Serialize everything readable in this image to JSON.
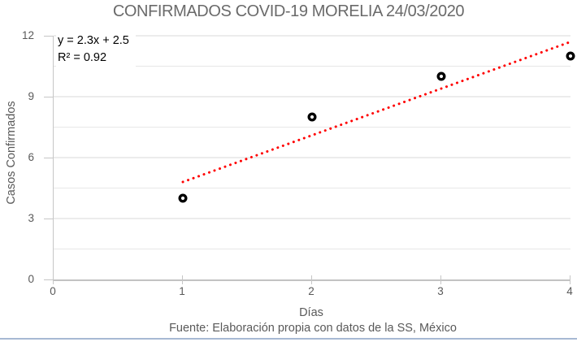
{
  "title": "CONFIRMADOS COVID-19 MORELIA 24/03/2020",
  "footer": "Fuente: Elaboración propia con datos de la SS, México",
  "annotation": {
    "equation": "y = 2.3x + 2.5",
    "r_squared": "R² = 0.92"
  },
  "colors": {
    "title_text": "#6a6a6a",
    "axis_text": "#595959",
    "grid_minor": "#e7e7e7",
    "grid_major": "#d9d9d9",
    "axis_line": "#c6c6c6",
    "marker_stroke": "#000000",
    "marker_fill": "#ffffff",
    "trendline": "#ff0000",
    "bottom_border": "#a7b9d3"
  },
  "chart_data": {
    "type": "scatter",
    "title": "CONFIRMADOS COVID-19 MORELIA 24/03/2020",
    "xlabel": "Días",
    "ylabel": "Casos Confirmados",
    "source_caption": "Fuente: Elaboración propia con datos de la SS, México",
    "xlim": [
      0,
      4
    ],
    "ylim": [
      0,
      12
    ],
    "xticks": [
      0,
      1,
      2,
      3,
      4
    ],
    "yticks": [
      0,
      3,
      6,
      9,
      12
    ],
    "grid": true,
    "gridline_step": 1.5,
    "major_step": 3,
    "legend": false,
    "series": [
      {
        "name": "Casos Confirmados",
        "x": [
          1,
          2,
          3,
          4
        ],
        "y": [
          4,
          8,
          10,
          11
        ],
        "marker": "open-circle"
      }
    ],
    "trendline": {
      "type": "linear",
      "slope": 2.3,
      "intercept": 2.5,
      "r2": 0.92,
      "equation": "y = 2.3x + 2.5",
      "r2_label": "R² = 0.92",
      "x_start": 1,
      "x_end": 3.98,
      "style": "dotted",
      "color": "#ff0000"
    }
  }
}
